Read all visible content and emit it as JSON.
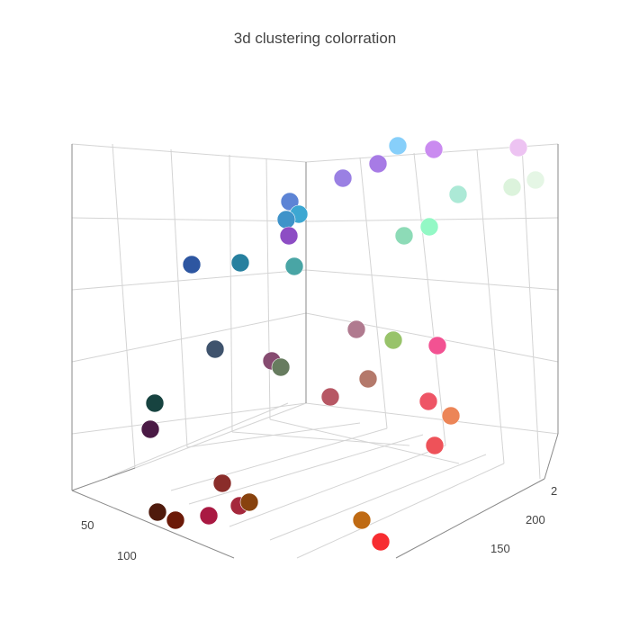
{
  "chart_data": {
    "type": "scatter",
    "title": "3d clustering colorration",
    "tick_labels": {
      "left_axis": [
        "50",
        "100"
      ],
      "right_axis": [
        "2",
        "200",
        "150"
      ]
    },
    "grid": true,
    "points": [
      {
        "color": "#87cffa"
      },
      {
        "color": "#ca8bf0"
      },
      {
        "color": "#edc3f2"
      },
      {
        "color": "#a77be5"
      },
      {
        "color": "#9a80e3"
      },
      {
        "color": "#ace9d6"
      },
      {
        "color": "#dcf3dc"
      },
      {
        "color": "#e5f6e5"
      },
      {
        "color": "#5d84d5"
      },
      {
        "color": "#3ca7d2"
      },
      {
        "color": "#3f93c9"
      },
      {
        "color": "#8d4dc4"
      },
      {
        "color": "#8ddbb7"
      },
      {
        "color": "#93f8c5"
      },
      {
        "color": "#2d56a1"
      },
      {
        "color": "#27809f"
      },
      {
        "color": "#49a5a5"
      },
      {
        "color": "#b07a8f"
      },
      {
        "color": "#98c36a"
      },
      {
        "color": "#f25292"
      },
      {
        "color": "#3f536d"
      },
      {
        "color": "#864b70"
      },
      {
        "color": "#677c5f"
      },
      {
        "color": "#b4796b"
      },
      {
        "color": "#b75764"
      },
      {
        "color": "#ee5566"
      },
      {
        "color": "#ec8557"
      },
      {
        "color": "#174340"
      },
      {
        "color": "#ee5259"
      },
      {
        "color": "#4a1a45"
      },
      {
        "color": "#8a2d2a"
      },
      {
        "color": "#4f1a0c"
      },
      {
        "color": "#6c1a08"
      },
      {
        "color": "#a91942"
      },
      {
        "color": "#a5283c"
      },
      {
        "color": "#88420e"
      },
      {
        "color": "#bf6a13"
      },
      {
        "color": "#f72d31"
      }
    ]
  }
}
